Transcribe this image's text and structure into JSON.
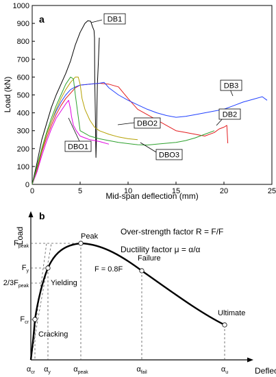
{
  "chart_data": [
    {
      "type": "line",
      "panel": "a",
      "xlabel": "Mid-span deflection (mm)",
      "ylabel": "Load (kN)",
      "xlim": [
        0,
        25
      ],
      "ylim": [
        0,
        1000
      ],
      "xticks": [
        "0",
        "5",
        "10",
        "15",
        "20",
        "25"
      ],
      "yticks": [
        "0",
        "100",
        "200",
        "300",
        "400",
        "500",
        "600",
        "700",
        "800",
        "900",
        "1000"
      ],
      "grid": false,
      "series": [
        {
          "name": "DB1",
          "color": "#000000",
          "x": [
            0,
            0.5,
            1.0,
            1.5,
            2.0,
            2.5,
            3.0,
            3.5,
            4.0,
            4.5,
            5.0,
            5.5,
            5.8,
            6.1,
            6.3,
            6.45,
            6.5,
            6.52,
            6.6,
            6.65,
            6.7,
            6.75,
            6.8,
            6.9,
            7.0
          ],
          "y": [
            0,
            120,
            250,
            340,
            430,
            500,
            560,
            620,
            690,
            780,
            850,
            900,
            915,
            912,
            880,
            860,
            820,
            600,
            350,
            150,
            250,
            420,
            560,
            680,
            820
          ]
        },
        {
          "name": "DB2",
          "color": "#e31a1c",
          "x": [
            0,
            0.5,
            1.0,
            1.5,
            2.0,
            2.5,
            3.0,
            3.5,
            4.0,
            4.5,
            5.0,
            6.0,
            7.0,
            8.0,
            9.0,
            10.0,
            11.0,
            12.0,
            13.0,
            14.0,
            15.0,
            16.0,
            17.0,
            18.0,
            19.0,
            19.5,
            20.0,
            20.3,
            20.4
          ],
          "y": [
            0,
            80,
            180,
            260,
            330,
            390,
            440,
            480,
            510,
            540,
            555,
            560,
            565,
            560,
            545,
            480,
            420,
            390,
            360,
            330,
            300,
            290,
            280,
            270,
            290,
            310,
            320,
            330,
            230
          ]
        },
        {
          "name": "DB3",
          "color": "#1f3fff",
          "x": [
            0,
            0.5,
            1.0,
            1.5,
            2.0,
            2.5,
            3.0,
            3.5,
            4.0,
            4.5,
            5.0,
            6.0,
            7.0,
            7.5,
            8.0,
            9.0,
            10.0,
            11.0,
            12.0,
            13.0,
            14.0,
            15.0,
            16.0,
            17.0,
            18.0,
            19.0,
            20.0,
            21.0,
            22.0,
            23.0,
            24.0,
            24.5
          ],
          "y": [
            0,
            90,
            190,
            280,
            350,
            410,
            460,
            500,
            530,
            545,
            555,
            560,
            565,
            570,
            540,
            500,
            470,
            445,
            420,
            400,
            385,
            375,
            380,
            390,
            400,
            410,
            420,
            440,
            460,
            475,
            490,
            470
          ]
        },
        {
          "name": "DBO1",
          "color": "#e000e0",
          "x": [
            0,
            0.5,
            1.0,
            1.5,
            2.0,
            2.5,
            3.0,
            3.5,
            3.8,
            4.0,
            4.1,
            4.3,
            4.6,
            5.0,
            6.0,
            7.0,
            8.0
          ],
          "y": [
            0,
            70,
            160,
            240,
            310,
            370,
            410,
            450,
            470,
            420,
            380,
            330,
            300,
            270,
            250,
            240,
            225
          ]
        },
        {
          "name": "DBO2",
          "color": "#b5a000",
          "x": [
            0,
            0.5,
            1.0,
            1.5,
            2.0,
            2.5,
            3.0,
            3.5,
            4.0,
            4.5,
            4.8,
            5.0,
            5.2,
            5.5,
            6.0,
            6.5,
            7.0,
            8.0,
            9.0,
            10.0,
            11.0
          ],
          "y": [
            0,
            90,
            190,
            280,
            350,
            420,
            480,
            530,
            570,
            600,
            600,
            560,
            480,
            420,
            360,
            320,
            300,
            280,
            265,
            255,
            250
          ]
        },
        {
          "name": "DBO3",
          "color": "#2ca02c",
          "x": [
            0,
            0.5,
            1.0,
            1.5,
            2.0,
            2.5,
            3.0,
            3.5,
            4.0,
            4.3,
            4.5,
            4.8,
            5.0,
            6.0,
            7.0,
            8.0,
            9.0,
            10.0,
            11.0,
            12.0,
            13.0,
            14.0,
            15.0,
            16.0,
            17.0,
            18.0,
            19.0
          ],
          "y": [
            0,
            100,
            200,
            290,
            370,
            440,
            500,
            560,
            600,
            590,
            500,
            380,
            300,
            270,
            255,
            245,
            235,
            228,
            222,
            220,
            225,
            230,
            235,
            245,
            260,
            280,
            300
          ]
        }
      ],
      "labels": [
        {
          "text": "DB1",
          "series": "DB1"
        },
        {
          "text": "DB2",
          "series": "DB2"
        },
        {
          "text": "DB3",
          "series": "DB3"
        },
        {
          "text": "DBO1",
          "series": "DBO1"
        },
        {
          "text": "DBO2",
          "series": "DBO2"
        },
        {
          "text": "DBO3",
          "series": "DBO3"
        }
      ]
    },
    {
      "type": "line",
      "panel": "b",
      "xlabel": "Deflection",
      "ylabel": "Load",
      "formula_overstrength": "Over-strength factor R = F/F",
      "formula_ductility": "Ductility factor μ = α/α",
      "yticks": [
        "F",
        "F",
        "2/3F",
        "F"
      ],
      "ytick_subscripts": [
        "peak",
        "y",
        "peak",
        "cr"
      ],
      "xticks": [
        "α",
        "α",
        "α",
        "α",
        "α"
      ],
      "xtick_subscripts": [
        "cr",
        "y",
        "peak",
        "fail",
        "u"
      ],
      "points": [
        {
          "name": "Cracking"
        },
        {
          "name": "Yielding"
        },
        {
          "name": "Peak"
        },
        {
          "name": "Failure"
        },
        {
          "name": "Ultimate"
        }
      ],
      "failure_annotation": "F = 0.8F"
    }
  ]
}
